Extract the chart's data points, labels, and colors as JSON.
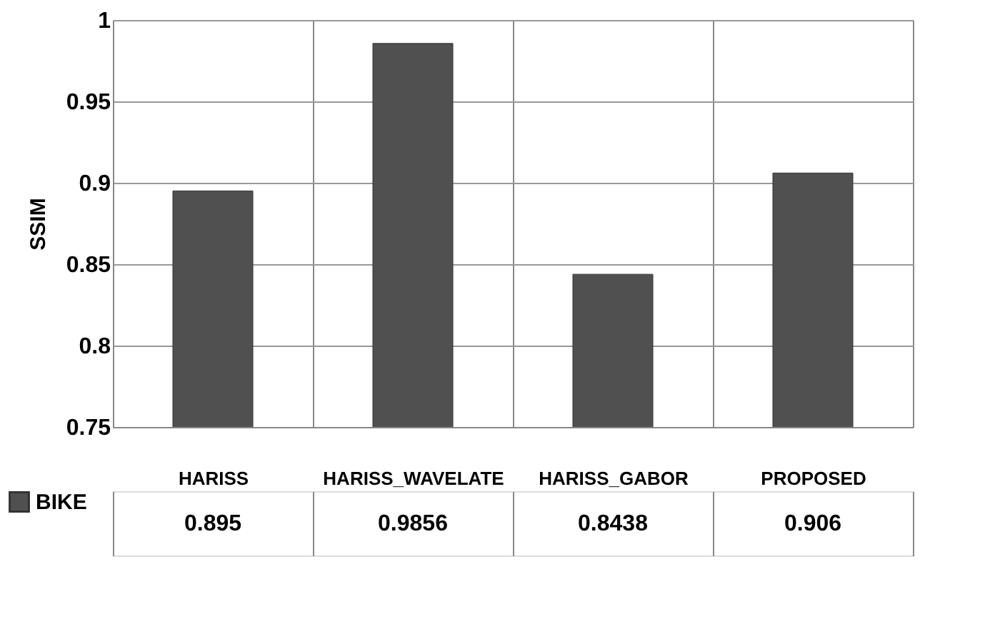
{
  "chart_data": {
    "type": "bar",
    "ylabel": "SSIM",
    "categories": [
      "HARISS",
      "HARISS_WAVELATE",
      "HARISS_GABOR",
      "PROPOSED"
    ],
    "series": [
      {
        "name": "BIKE",
        "color": "#505050",
        "values": [
          0.895,
          0.9856,
          0.8438,
          0.906
        ]
      }
    ],
    "ylim": [
      0.75,
      1
    ],
    "yticks": [
      0.75,
      0.8,
      0.85,
      0.9,
      0.95,
      1
    ],
    "grid": "y",
    "data_labels": true,
    "legend": "bottom left"
  }
}
